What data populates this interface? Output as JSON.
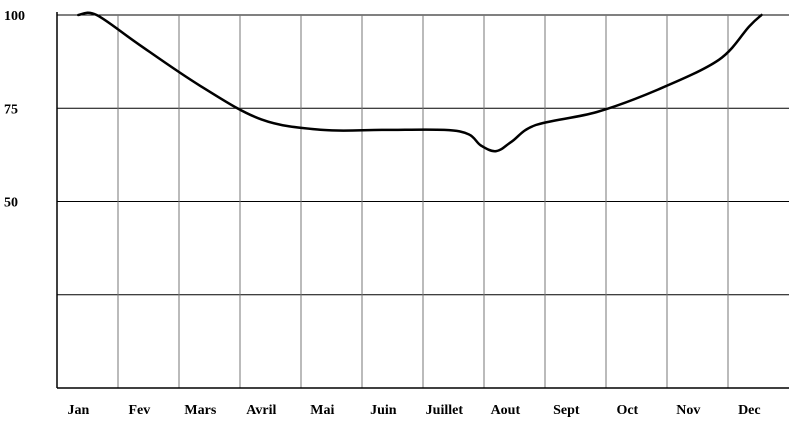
{
  "chart_data": {
    "type": "line",
    "title": "",
    "xlabel": "",
    "ylabel": "",
    "categories": [
      "Jan",
      "Fev",
      "Mars",
      "Avril",
      "Mai",
      "Juin",
      "Juillet",
      "Aout",
      "Sept",
      "Oct",
      "Nov",
      "Dec"
    ],
    "y_tick_labels": [
      "100",
      "75",
      "50"
    ],
    "ylim": [
      0,
      100
    ],
    "grid": true,
    "legend": "none",
    "series": [
      {
        "color": "#000000",
        "x": [
          0,
          0.3,
          1.0,
          2.0,
          3.0,
          4.0,
          5.0,
          6.0,
          6.4,
          6.6,
          6.85,
          7.1,
          7.5,
          8.5,
          9.5,
          10.5,
          11.0,
          11.2
        ],
        "values": [
          100,
          100,
          92,
          81,
          72,
          69.2,
          69.2,
          69.2,
          68,
          65,
          63.5,
          66,
          70.5,
          74,
          80,
          88,
          97,
          100
        ]
      }
    ]
  }
}
